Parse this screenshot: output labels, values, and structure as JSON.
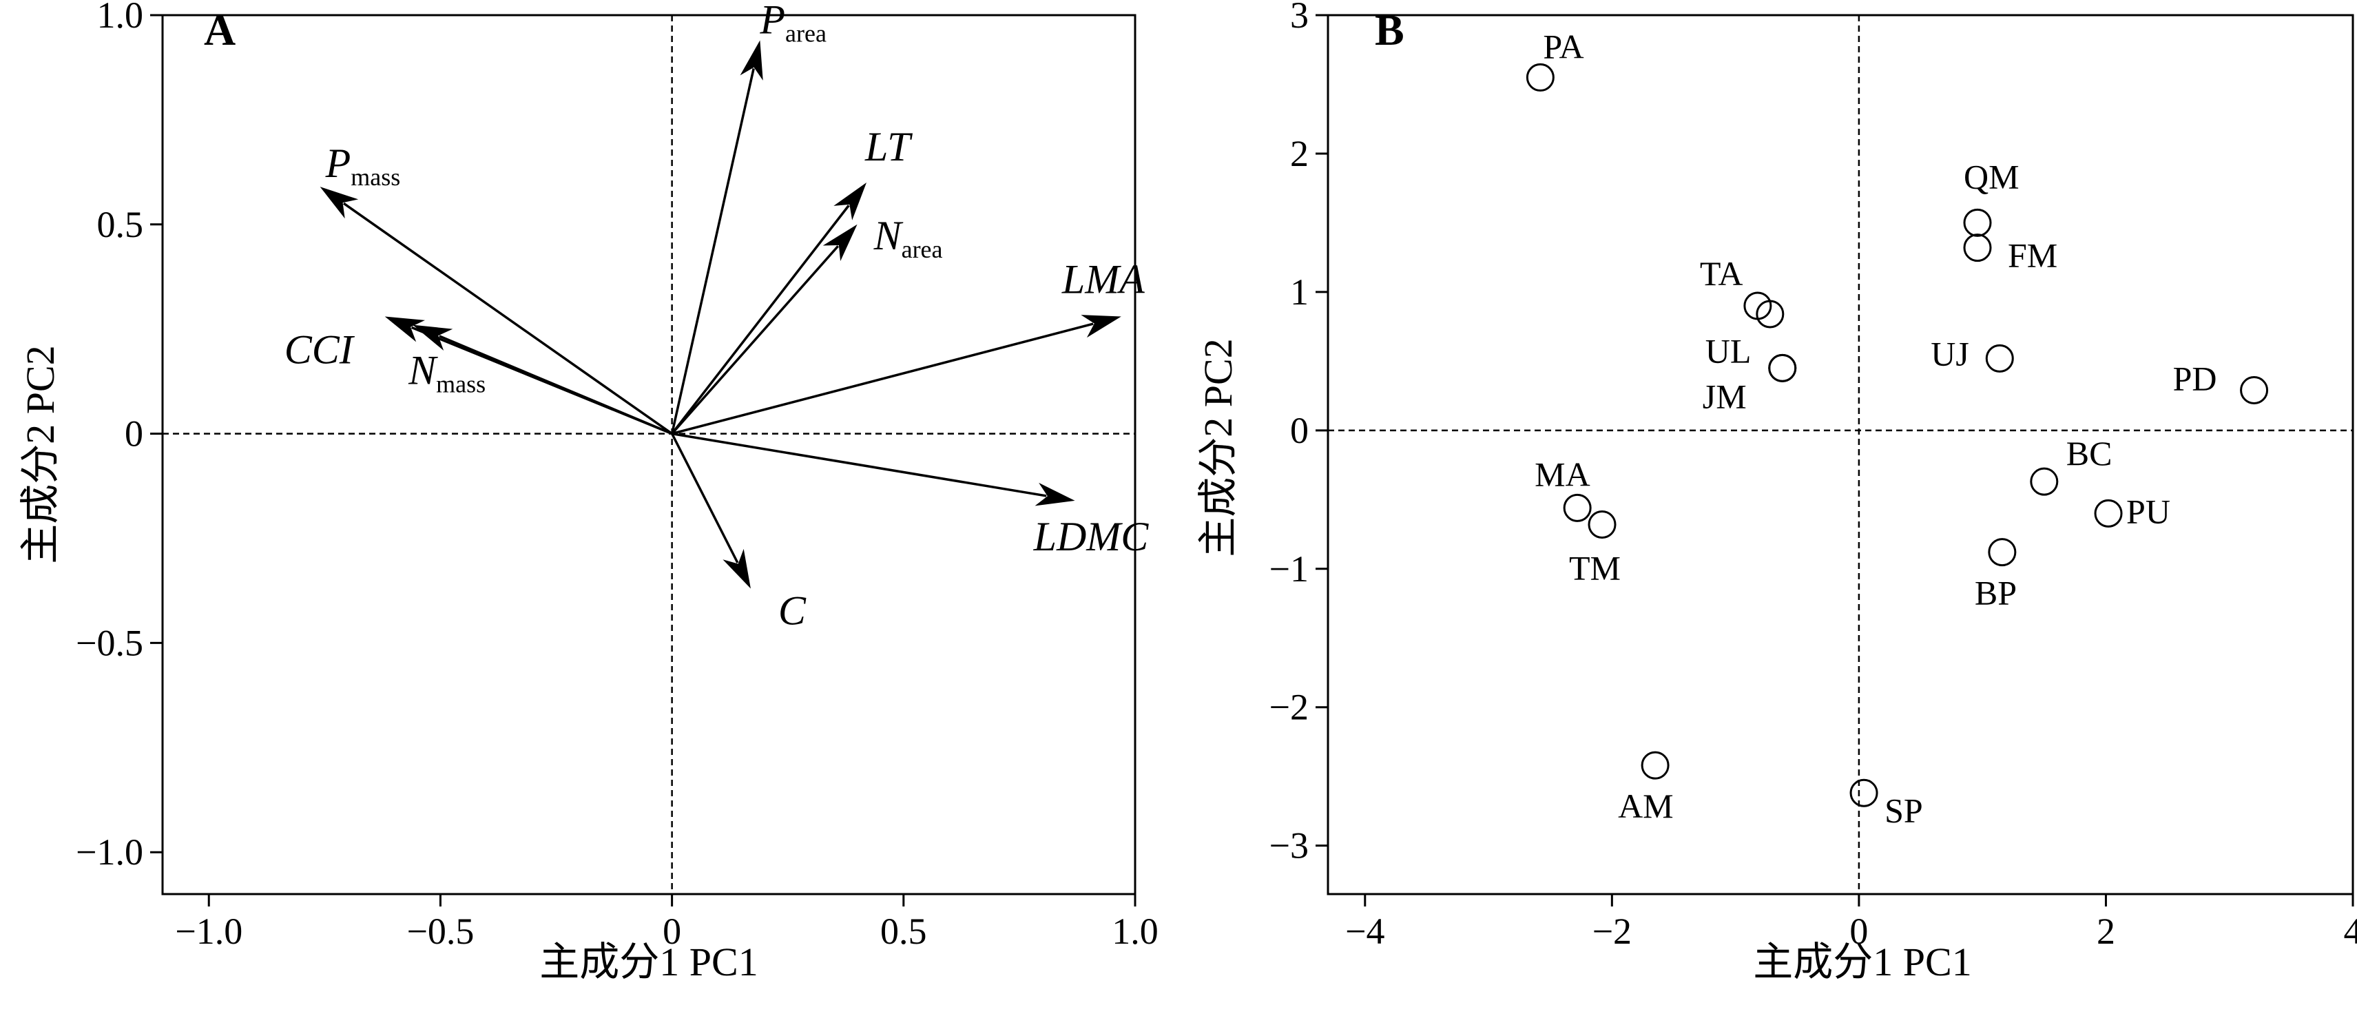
{
  "chart_data": [
    {
      "type": "scatter",
      "subtype": "biplot-loadings",
      "panel_label": "A",
      "xlabel": "主成分1 PC1",
      "ylabel": "主成分2 PC2",
      "xlim": [
        -1.1,
        1.0
      ],
      "ylim": [
        -1.1,
        1.0
      ],
      "xticks": [
        -1.0,
        -0.5,
        0,
        0.5,
        1.0
      ],
      "yticks": [
        -1.0,
        -0.5,
        0,
        0.5,
        1.0
      ],
      "xtick_labels": [
        "−1.0",
        "−0.5",
        "0",
        "0.5",
        "1.0"
      ],
      "ytick_labels": [
        "−1.0",
        "−0.5",
        "0",
        "0.5",
        "1.0"
      ],
      "reference_lines": {
        "x": 0,
        "y": 0,
        "style": "dashed"
      },
      "vectors": [
        {
          "name": "P",
          "subscript": "area",
          "x": 0.19,
          "y": 0.94
        },
        {
          "name": "LT",
          "subscript": "",
          "x": 0.42,
          "y": 0.6
        },
        {
          "name": "N",
          "subscript": "area",
          "x": 0.4,
          "y": 0.5
        },
        {
          "name": "LMA",
          "subscript": "",
          "x": 0.97,
          "y": 0.28
        },
        {
          "name": "LDMC",
          "subscript": "",
          "x": 0.87,
          "y": -0.16
        },
        {
          "name": "C",
          "subscript": "",
          "x": 0.17,
          "y": -0.37
        },
        {
          "name": "P",
          "subscript": "mass",
          "x": -0.76,
          "y": 0.59
        },
        {
          "name": "CCI",
          "subscript": "",
          "x": -0.62,
          "y": 0.28
        },
        {
          "name": "N",
          "subscript": "mass",
          "x": -0.56,
          "y": 0.26
        }
      ]
    },
    {
      "type": "scatter",
      "panel_label": "B",
      "xlabel": "主成分1 PC1",
      "ylabel": "主成分2 PC2",
      "xlim": [
        -4.3,
        4.0
      ],
      "ylim": [
        -3.35,
        3.0
      ],
      "xticks": [
        -4,
        -2,
        0,
        2,
        4
      ],
      "yticks": [
        -3,
        -2,
        -1,
        0,
        1,
        2,
        3
      ],
      "xtick_labels": [
        "−4",
        "−2",
        "0",
        "2",
        "4"
      ],
      "ytick_labels": [
        "−3",
        "−2",
        "−1",
        "0",
        "1",
        "2",
        "3"
      ],
      "reference_lines": {
        "x": 0,
        "y": 0,
        "style": "dashed"
      },
      "marker": "open-circle",
      "points": [
        {
          "label": "PA",
          "x": -2.58,
          "y": 2.55
        },
        {
          "label": "QM",
          "x": 0.96,
          "y": 1.5
        },
        {
          "label": "FM",
          "x": 0.96,
          "y": 1.32
        },
        {
          "label": "TA",
          "x": -0.82,
          "y": 0.9
        },
        {
          "label": "",
          "x": -0.72,
          "y": 0.84
        },
        {
          "label": "UL",
          "x": -0.62,
          "y": 0.45
        },
        {
          "label": "JM",
          "x": -0.62,
          "y": 0.45
        },
        {
          "label": "UJ",
          "x": 1.14,
          "y": 0.52
        },
        {
          "label": "PD",
          "x": 3.2,
          "y": 0.29
        },
        {
          "label": "BC",
          "x": 1.5,
          "y": -0.37
        },
        {
          "label": "PU",
          "x": 2.02,
          "y": -0.6
        },
        {
          "label": "BP",
          "x": 1.16,
          "y": -0.88
        },
        {
          "label": "MA",
          "x": -2.28,
          "y": -0.56
        },
        {
          "label": "TM",
          "x": -2.08,
          "y": -0.68
        },
        {
          "label": "AM",
          "x": -1.65,
          "y": -2.42
        },
        {
          "label": "SP",
          "x": 0.04,
          "y": -2.62
        }
      ]
    }
  ]
}
